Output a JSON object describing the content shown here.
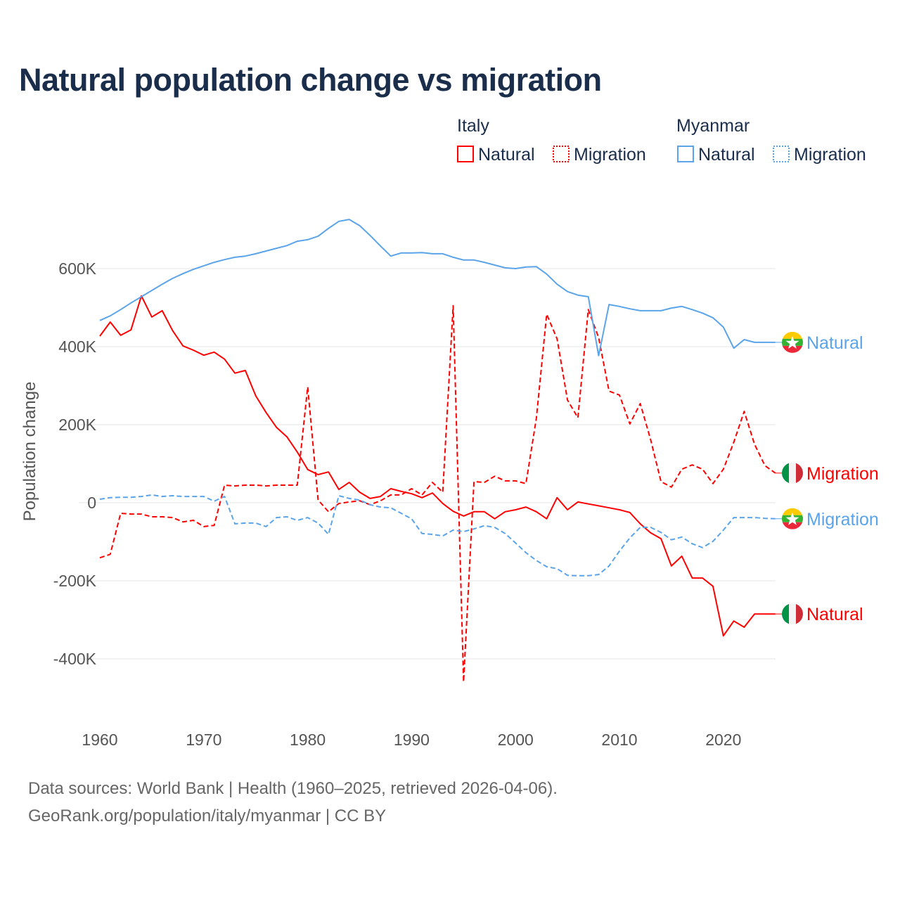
{
  "chart_data": {
    "type": "line",
    "title": "Natural population change vs migration",
    "xlabel": "",
    "ylabel": "Population change",
    "xlim": [
      1960,
      2025
    ],
    "ylim": [
      -460000,
      730000
    ],
    "xticks": [
      1960,
      1970,
      1980,
      1990,
      2000,
      2010,
      2020
    ],
    "yticks": [
      -400000,
      -200000,
      0,
      200000,
      400000,
      600000
    ],
    "ytick_labels": [
      "-400K",
      "-200K",
      "0",
      "200K",
      "400K",
      "600K"
    ],
    "grid": true,
    "legend_position": "top-right",
    "legend": {
      "groups": [
        {
          "name": "Italy",
          "items": [
            "Natural",
            "Migration"
          ]
        },
        {
          "name": "Myanmar",
          "items": [
            "Natural",
            "Migration"
          ]
        }
      ]
    },
    "x_start": 1960,
    "series": [
      {
        "id": "italy-natural",
        "country": "Italy",
        "name": "Natural",
        "color": "#ff0000",
        "dashed": false,
        "flag": "italy",
        "values_k": [
          427,
          463,
          429,
          443,
          530,
          476,
          492,
          441,
          402,
          391,
          378,
          386,
          368,
          332,
          339,
          274,
          231,
          193,
          169,
          130,
          85,
          72,
          79,
          34,
          52,
          27,
          11,
          16,
          36,
          29,
          23,
          13,
          25,
          -2,
          -22,
          -34,
          -23,
          -23,
          -41,
          -23,
          -18,
          -11,
          -23,
          -41,
          13,
          -18,
          2,
          -3,
          -8,
          -13,
          -18,
          -25,
          -54,
          -77,
          -92,
          -162,
          -137,
          -193,
          -193,
          -214,
          -341,
          -303,
          -319,
          -285,
          -285,
          -285
        ]
      },
      {
        "id": "italy-migration",
        "country": "Italy",
        "name": "Migration",
        "color": "#ff0000",
        "dashed": true,
        "flag": "italy",
        "values_k": [
          -141,
          -132,
          -27,
          -29,
          -29,
          -36,
          -36,
          -38,
          -49,
          -45,
          -61,
          -58,
          45,
          43,
          45,
          45,
          43,
          45,
          45,
          45,
          297,
          7,
          -23,
          -2,
          2,
          5,
          -5,
          5,
          20,
          20,
          36,
          20,
          52,
          27,
          505,
          -459,
          54,
          52,
          68,
          56,
          56,
          49,
          216,
          483,
          420,
          263,
          218,
          495,
          423,
          286,
          276,
          202,
          254,
          162,
          54,
          40,
          86,
          97,
          86,
          49,
          86,
          155,
          234,
          150,
          95,
          76
        ]
      },
      {
        "id": "myanmar-natural",
        "country": "Myanmar",
        "name": "Natural",
        "color": "#5ba4ea",
        "dashed": false,
        "flag": "myanmar",
        "values_k": [
          467,
          479,
          495,
          512,
          528,
          544,
          560,
          575,
          587,
          598,
          607,
          616,
          623,
          629,
          632,
          638,
          645,
          652,
          659,
          670,
          674,
          683,
          703,
          721,
          726,
          710,
          685,
          658,
          632,
          640,
          640,
          641,
          638,
          638,
          629,
          622,
          622,
          616,
          609,
          602,
          600,
          604,
          605,
          586,
          560,
          541,
          532,
          528,
          377,
          508,
          503,
          497,
          492,
          492,
          492,
          499,
          503,
          495,
          486,
          474,
          450,
          396,
          418,
          411,
          411,
          411
        ]
      },
      {
        "id": "myanmar-migration",
        "country": "Myanmar",
        "name": "Migration",
        "color": "#5ba4ea",
        "dashed": true,
        "flag": "myanmar",
        "values_k": [
          9,
          13,
          14,
          14,
          16,
          20,
          16,
          18,
          16,
          16,
          16,
          4,
          16,
          -54,
          -52,
          -52,
          -61,
          -38,
          -36,
          -45,
          -38,
          -52,
          -81,
          18,
          11,
          7,
          -5,
          -11,
          -13,
          -27,
          -41,
          -79,
          -81,
          -85,
          -70,
          -74,
          -67,
          -59,
          -63,
          -79,
          -103,
          -128,
          -148,
          -164,
          -169,
          -186,
          -187,
          -187,
          -184,
          -162,
          -124,
          -90,
          -63,
          -63,
          -76,
          -95,
          -88,
          -105,
          -115,
          -99,
          -70,
          -38,
          -38,
          -38,
          -40,
          -41
        ]
      }
    ],
    "end_labels": [
      "Natural",
      "Migration",
      "Migration",
      "Natural"
    ]
  },
  "footer": {
    "line1": "Data sources: World Bank | Health (1960–2025, retrieved 2026-04-06).",
    "line2": "GeoRank.org/population/italy/myanmar | CC BY"
  }
}
